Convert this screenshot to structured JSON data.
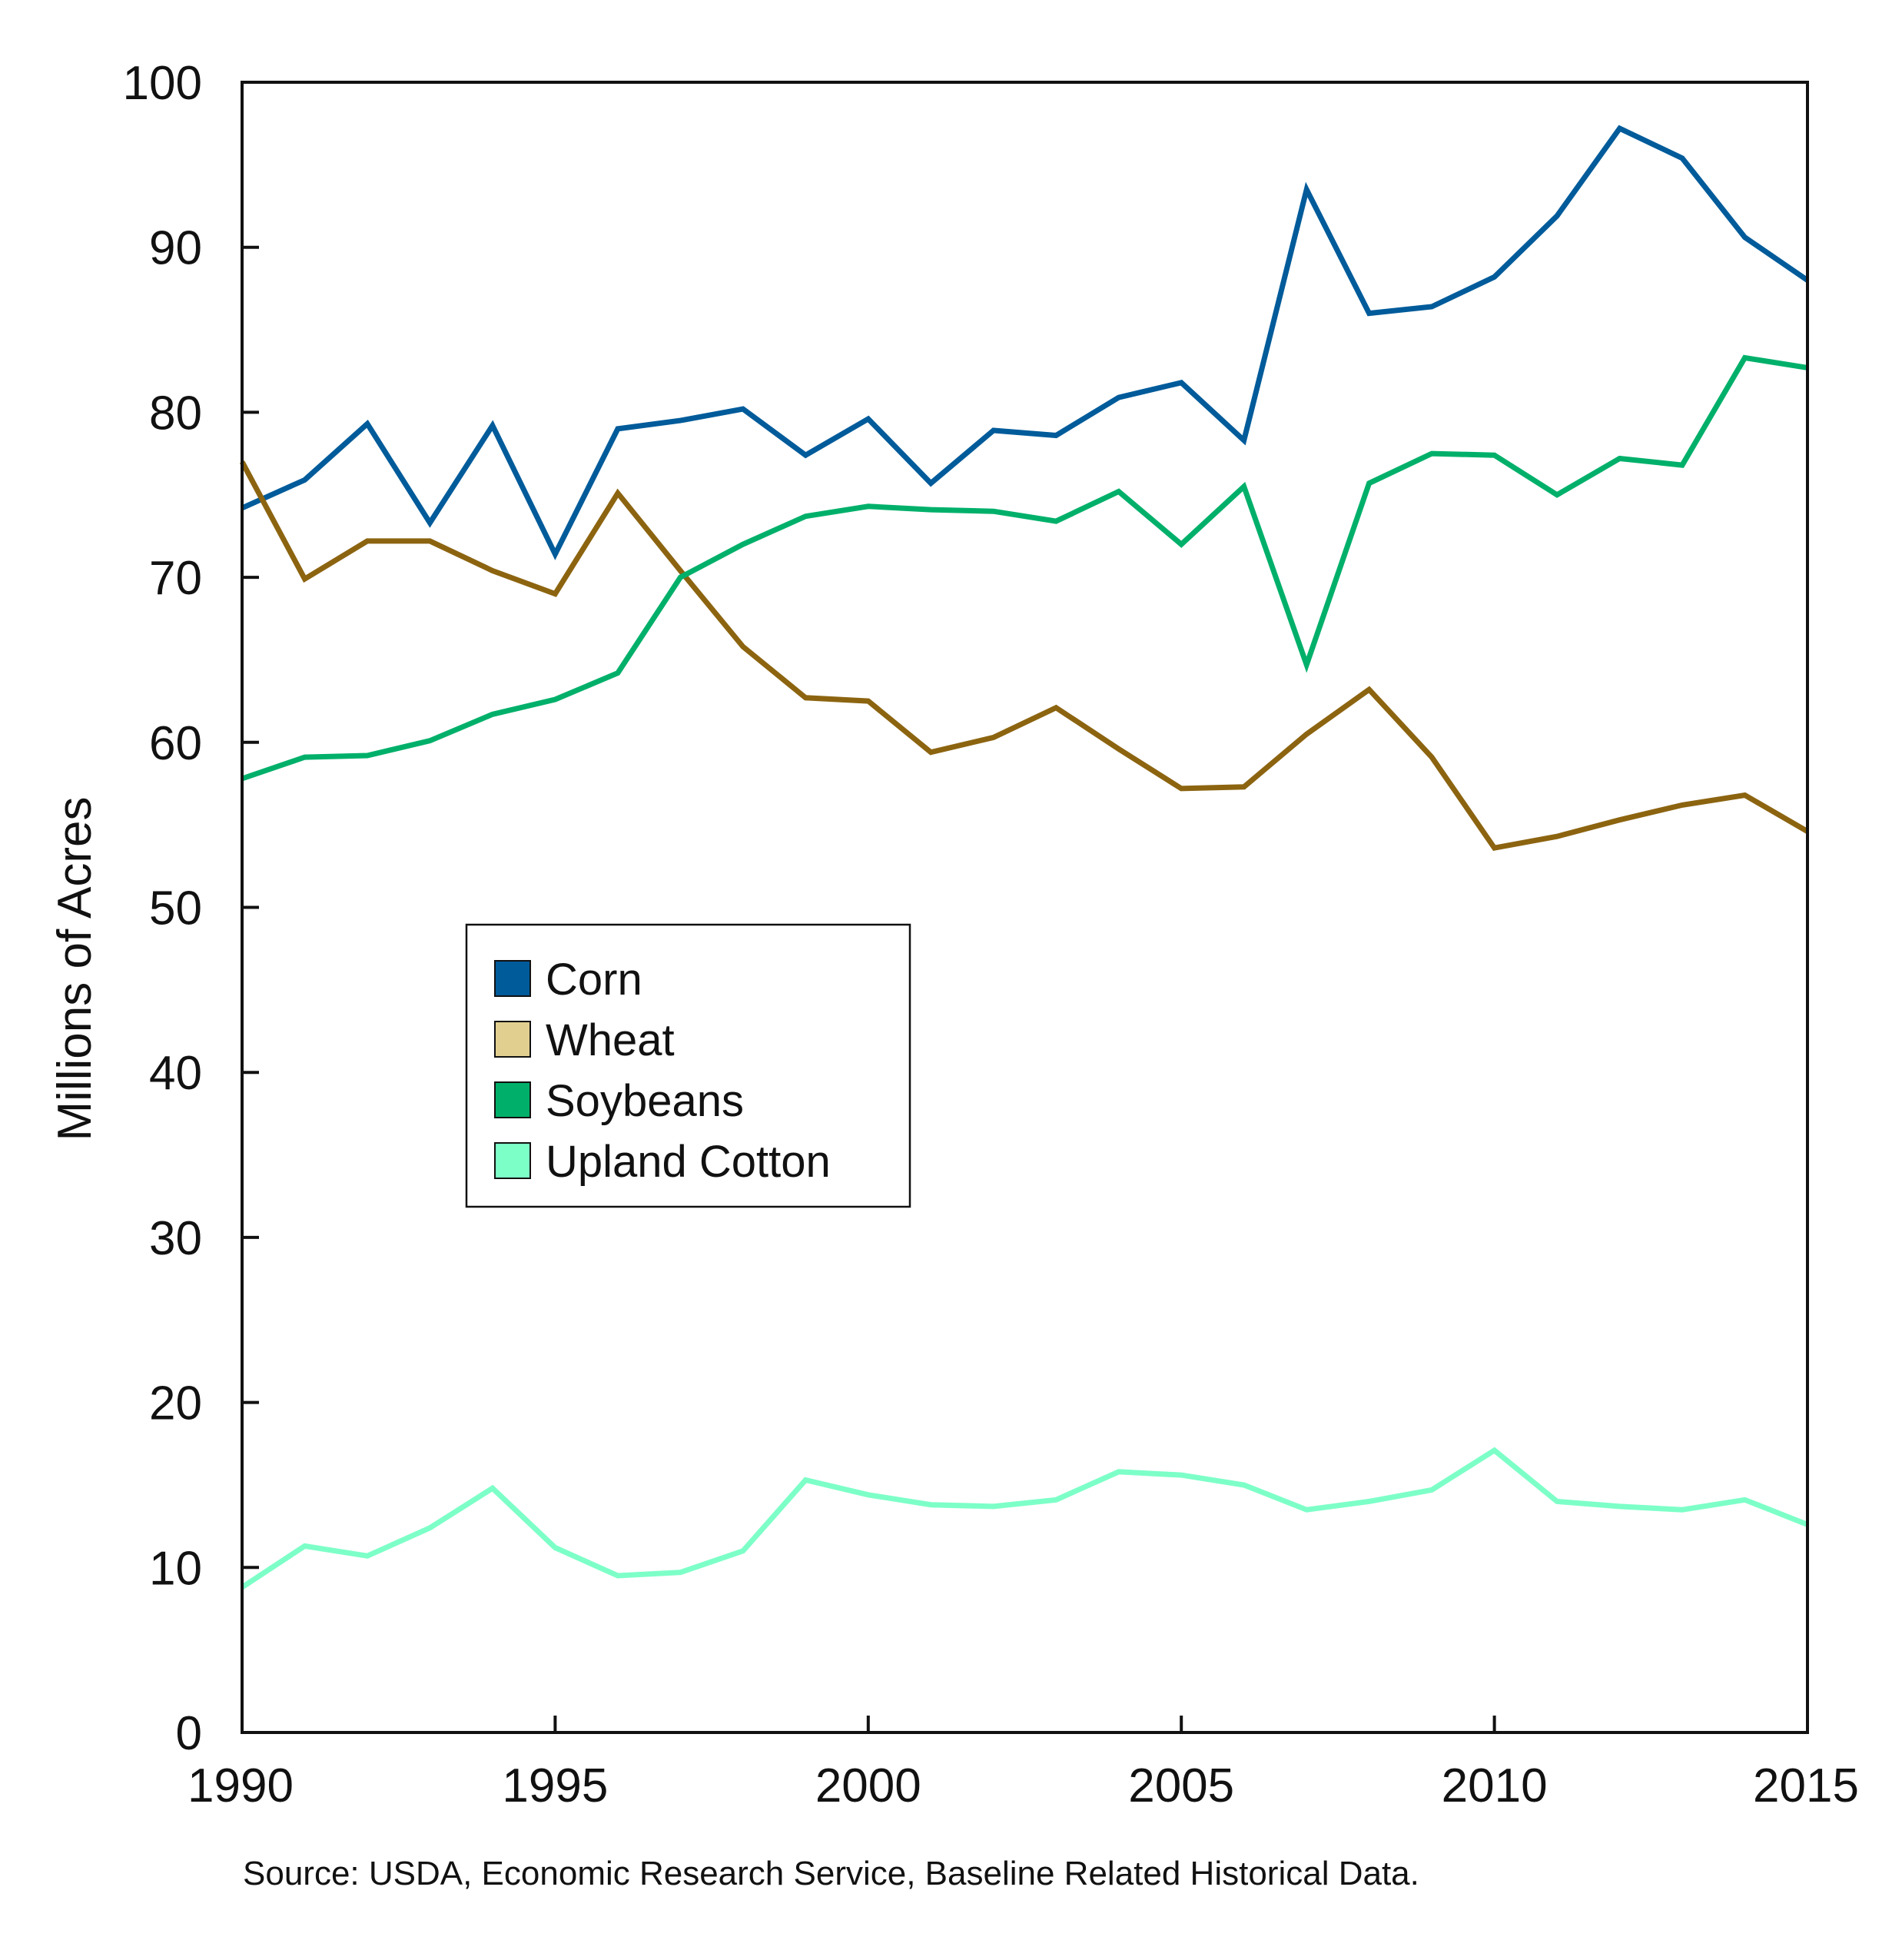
{
  "chart_data": {
    "type": "line",
    "title": "",
    "xlabel": "",
    "ylabel": "Millions of Acres",
    "xlim": [
      1990,
      2015
    ],
    "ylim": [
      0,
      100
    ],
    "x_ticks": [
      1990,
      1995,
      2000,
      2005,
      2010,
      2015
    ],
    "y_ticks": [
      0,
      10,
      20,
      30,
      40,
      50,
      60,
      70,
      80,
      90,
      100
    ],
    "grid": false,
    "legend_position": "center-left",
    "x": [
      1990,
      1991,
      1992,
      1993,
      1994,
      1995,
      1996,
      1997,
      1998,
      1999,
      2000,
      2001,
      2002,
      2003,
      2004,
      2005,
      2006,
      2007,
      2008,
      2009,
      2010,
      2011,
      2012,
      2013,
      2014,
      2015
    ],
    "series": [
      {
        "name": "Corn",
        "color": "#005b9a",
        "values": [
          74.2,
          75.9,
          79.3,
          73.3,
          79.2,
          71.4,
          79.0,
          79.5,
          80.2,
          77.4,
          79.6,
          75.7,
          78.9,
          78.6,
          80.9,
          81.8,
          78.3,
          93.5,
          86.0,
          86.4,
          88.2,
          91.9,
          97.2,
          95.4,
          90.6,
          88.0
        ]
      },
      {
        "name": "Wheat",
        "legend_color": "#e1cf8f",
        "color": "#8c6410",
        "values": [
          77.0,
          69.9,
          72.2,
          72.2,
          70.4,
          69.0,
          75.1,
          70.4,
          65.8,
          62.7,
          62.5,
          59.4,
          60.3,
          62.1,
          59.6,
          57.2,
          57.3,
          60.5,
          63.2,
          59.1,
          53.6,
          54.3,
          55.3,
          56.2,
          56.8,
          54.6
        ]
      },
      {
        "name": "Soybeans",
        "color": "#00b06a",
        "values": [
          57.8,
          59.1,
          59.2,
          60.1,
          61.7,
          62.6,
          64.2,
          70.0,
          72.0,
          73.7,
          74.3,
          74.1,
          74.0,
          73.4,
          75.2,
          72.0,
          75.5,
          64.7,
          75.7,
          77.5,
          77.4,
          75.0,
          77.2,
          76.8,
          83.3,
          82.7
        ]
      },
      {
        "name": "Upland Cotton",
        "color": "#7dffc8",
        "values": [
          8.8,
          11.3,
          10.7,
          12.4,
          14.8,
          11.2,
          9.5,
          9.7,
          11.0,
          15.3,
          14.4,
          13.8,
          13.7,
          14.1,
          15.8,
          15.6,
          15.0,
          13.5,
          14.0,
          14.7,
          17.1,
          14.0,
          13.7,
          13.5,
          14.1,
          12.6
        ]
      }
    ]
  },
  "source": "Source: USDA, Economic Research Service, Baseline Related Historical Data."
}
